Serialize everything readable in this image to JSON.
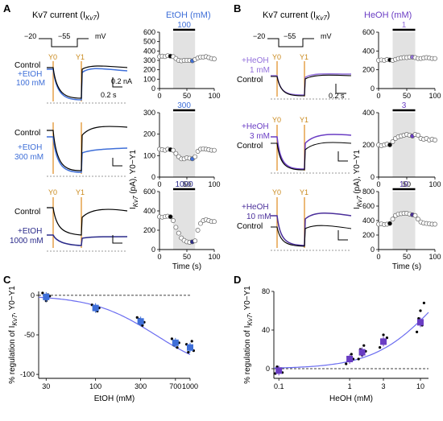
{
  "panel_letters": {
    "a": "A",
    "b": "B",
    "c": "C",
    "d": "D"
  },
  "colors": {
    "etoh": "#3f6fd8",
    "heoh": "#6a3dc4",
    "orange": "#e08a1e",
    "mark": "#9c27b0",
    "fitline": "#6a6cf0",
    "shade": "#e2e2e2"
  },
  "panel_a": {
    "title": "Kv7 current (I",
    "title_sub": "Kv7",
    "title_end": ")",
    "protocol": {
      "v_hold": "−20",
      "v_step": "−55",
      "unit": "mV"
    },
    "markers": [
      "Y0",
      "Y1"
    ],
    "scale_current": "0.2 nA",
    "scale_time": "0.2 s",
    "rows": [
      {
        "control": "Control",
        "drug": "+EtOH",
        "dose": "100 mM"
      },
      {
        "control": "Control",
        "drug": "+EtOH",
        "dose": "300 mM"
      },
      {
        "control": "Control",
        "drug": "+EtOH",
        "dose": "1000 mM"
      }
    ],
    "ts_header": "EtOH (mM)",
    "y_label": "I",
    "y_label_sub": "Kv7",
    "y_label_end": " (pA), Y0−Y1",
    "x_label": "Time (s)"
  },
  "panel_b": {
    "title": "Kv7 current (I",
    "title_sub": "Kv7",
    "title_end": ")",
    "protocol": {
      "v_hold": "−20",
      "v_step": "−55",
      "unit": "mV"
    },
    "markers": [
      "Y0",
      "Y1"
    ],
    "scale_time": "0.2 s",
    "rows": [
      {
        "control": "Control",
        "drug": "+HeOH",
        "dose": "1 mM"
      },
      {
        "control": "Control",
        "drug": "+HeOH",
        "dose": "3 mM"
      },
      {
        "control": "Control",
        "drug": "+HeOH",
        "dose": "10 mM"
      }
    ],
    "ts_header": "HeOH (mM)",
    "y_label": "I",
    "y_label_sub": "Kv7",
    "y_label_end": " (pA), Y0−Y1",
    "x_label": "Time (s)"
  },
  "chart_data": [
    {
      "type": "scatter",
      "panel": "A",
      "dose_label": "100",
      "xlabel": "",
      "ylabel": "",
      "xlim": [
        0,
        100
      ],
      "ylim": [
        0,
        600
      ],
      "xticks": [
        0,
        50,
        100
      ],
      "yticks": [
        0,
        100,
        200,
        300,
        400,
        500,
        600
      ],
      "x": [
        0,
        5,
        10,
        15,
        20,
        25,
        30,
        35,
        40,
        45,
        50,
        55,
        60,
        65,
        70,
        75,
        80,
        85,
        90,
        95,
        100
      ],
      "y": [
        340,
        345,
        340,
        350,
        345,
        340,
        320,
        300,
        295,
        300,
        300,
        300,
        295,
        310,
        325,
        335,
        335,
        340,
        330,
        320,
        315
      ]
    },
    {
      "type": "scatter",
      "panel": "A",
      "dose_label": "300",
      "xlabel": "",
      "ylabel": "",
      "xlim": [
        0,
        100
      ],
      "ylim": [
        0,
        300
      ],
      "xticks": [
        0,
        50,
        100
      ],
      "yticks": [
        0,
        100,
        200,
        300
      ],
      "x": [
        0,
        5,
        10,
        15,
        20,
        25,
        30,
        35,
        40,
        45,
        50,
        55,
        60,
        65,
        70,
        75,
        80,
        85,
        90,
        95,
        100
      ],
      "y": [
        130,
        128,
        125,
        130,
        128,
        125,
        110,
        95,
        85,
        85,
        90,
        88,
        85,
        95,
        120,
        130,
        132,
        130,
        128,
        125,
        125
      ]
    },
    {
      "type": "scatter",
      "panel": "A",
      "dose_label": "1000",
      "xlabel": "Time (s)",
      "ylabel": "",
      "xlim": [
        0,
        100
      ],
      "ylim": [
        0,
        600
      ],
      "xticks": [
        0,
        50,
        100
      ],
      "yticks": [
        0,
        200,
        400,
        600
      ],
      "x": [
        0,
        5,
        10,
        15,
        20,
        25,
        30,
        35,
        40,
        45,
        50,
        55,
        60,
        65,
        70,
        75,
        80,
        85,
        90,
        95,
        100
      ],
      "y": [
        340,
        335,
        340,
        345,
        340,
        300,
        230,
        170,
        120,
        95,
        80,
        75,
        80,
        90,
        200,
        270,
        300,
        310,
        300,
        290,
        290
      ]
    },
    {
      "type": "scatter",
      "panel": "B",
      "dose_label": "1",
      "xlabel": "",
      "ylabel": "",
      "xlim": [
        0,
        100
      ],
      "ylim": [
        0,
        600
      ],
      "xticks": [
        0,
        50,
        100
      ],
      "yticks": [
        0,
        200,
        400,
        600
      ],
      "x": [
        0,
        5,
        10,
        15,
        20,
        25,
        30,
        35,
        40,
        45,
        50,
        55,
        60,
        65,
        70,
        75,
        80,
        85,
        90,
        95,
        100
      ],
      "y": [
        300,
        305,
        300,
        310,
        305,
        300,
        310,
        320,
        325,
        330,
        330,
        335,
        335,
        330,
        320,
        320,
        325,
        330,
        325,
        320,
        320
      ]
    },
    {
      "type": "scatter",
      "panel": "B",
      "dose_label": "3",
      "xlabel": "",
      "ylabel": "",
      "xlim": [
        0,
        100
      ],
      "ylim": [
        0,
        400
      ],
      "xticks": [
        0,
        50,
        100
      ],
      "yticks": [
        0,
        200,
        400
      ],
      "x": [
        0,
        5,
        10,
        15,
        20,
        25,
        30,
        35,
        40,
        45,
        50,
        55,
        60,
        65,
        70,
        75,
        80,
        85,
        90,
        95,
        100
      ],
      "y": [
        200,
        195,
        200,
        205,
        200,
        220,
        240,
        250,
        255,
        260,
        265,
        260,
        255,
        265,
        260,
        240,
        235,
        240,
        230,
        235,
        230
      ]
    },
    {
      "type": "scatter",
      "panel": "B",
      "dose_label": "10",
      "xlabel": "Time (s)",
      "ylabel": "",
      "xlim": [
        0,
        100
      ],
      "ylim": [
        0,
        800
      ],
      "xticks": [
        0,
        50,
        100
      ],
      "yticks": [
        0,
        200,
        400,
        600,
        800
      ],
      "x": [
        0,
        5,
        10,
        15,
        20,
        25,
        30,
        35,
        40,
        45,
        50,
        55,
        60,
        65,
        70,
        75,
        80,
        85,
        90,
        95,
        100
      ],
      "y": [
        350,
        355,
        345,
        350,
        360,
        420,
        470,
        490,
        495,
        500,
        500,
        490,
        480,
        470,
        420,
        380,
        365,
        360,
        355,
        350,
        350
      ]
    },
    {
      "type": "scatter",
      "panel": "C",
      "xlabel": "EtOH (mM)",
      "ylabel": "% regulation of I",
      "ylabel_sub": "Kv7",
      "ylabel_end": ", Y0−Y1",
      "xscale": "log",
      "xlim": [
        25,
        1000
      ],
      "ylim": [
        -105,
        5
      ],
      "xticks": [
        30,
        100,
        300,
        700,
        1000
      ],
      "yticks": [
        0,
        -50,
        -100
      ],
      "means": {
        "x": [
          30,
          100,
          300,
          700,
          1000
        ],
        "y": [
          -2,
          -16,
          -33,
          -60,
          -66
        ]
      },
      "points": {
        "x": [
          30,
          30,
          30,
          30,
          30,
          100,
          100,
          100,
          100,
          100,
          300,
          300,
          300,
          300,
          300,
          700,
          700,
          700,
          700,
          700,
          1000,
          1000,
          1000,
          1000,
          1000
        ],
        "y": [
          3,
          -3,
          -7,
          1,
          -1,
          -12,
          -18,
          -14,
          -20,
          -16,
          -28,
          -30,
          -36,
          -38,
          -34,
          -55,
          -63,
          -58,
          -66,
          -60,
          -62,
          -72,
          -68,
          -58,
          -70
        ]
      },
      "fit": "hill"
    },
    {
      "type": "scatter",
      "panel": "D",
      "xlabel": "HeOH (mM)",
      "ylabel": "% regulation of I",
      "ylabel_sub": "Kv7",
      "ylabel_end": ", Y0−Y1",
      "xscale": "log",
      "xlim": [
        0.085,
        13
      ],
      "ylim": [
        -10,
        80
      ],
      "xticks": [
        0.1,
        1,
        3,
        10
      ],
      "yticks": [
        0,
        40,
        80
      ],
      "means": {
        "x": [
          0.1,
          1,
          1.5,
          3,
          10
        ],
        "y": [
          -2,
          10,
          17,
          28,
          48
        ]
      },
      "points": {
        "x": [
          0.1,
          0.1,
          0.1,
          0.1,
          0.1,
          1,
          1,
          1,
          1,
          1,
          1.5,
          1.5,
          1.5,
          1.5,
          1.5,
          3,
          3,
          3,
          3,
          3,
          10,
          10,
          10,
          10,
          10
        ],
        "y": [
          -5,
          2,
          -3,
          0,
          -4,
          5,
          12,
          8,
          15,
          10,
          10,
          20,
          14,
          24,
          18,
          22,
          30,
          35,
          26,
          32,
          38,
          52,
          60,
          45,
          68
        ]
      },
      "fit": "hill"
    }
  ]
}
